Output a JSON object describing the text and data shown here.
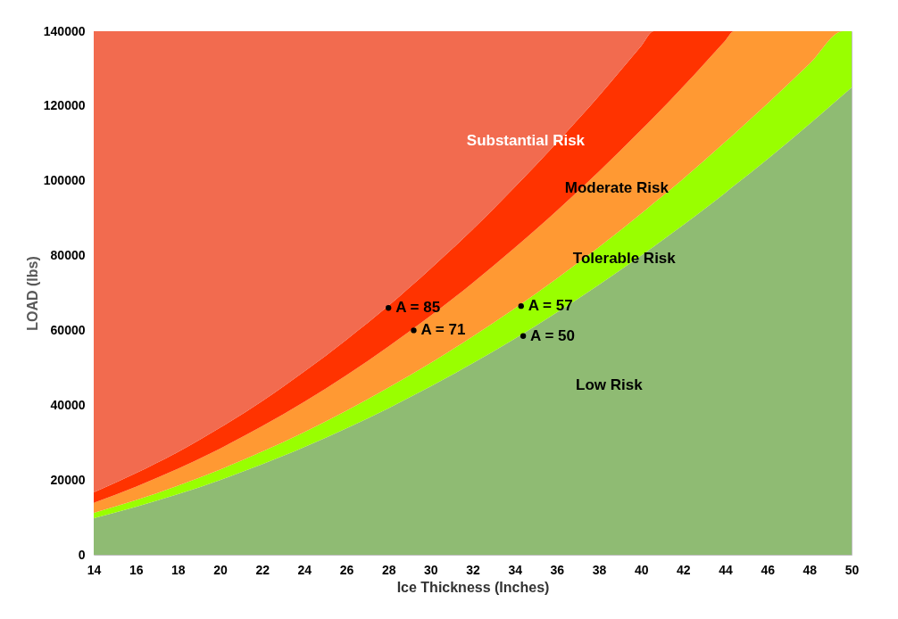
{
  "chart_data": {
    "type": "area",
    "stacked": true,
    "xlabel": "Ice Thickness (Inches)",
    "ylabel": "LOAD (lbs)",
    "xlim": [
      14,
      50
    ],
    "xticks": [
      14,
      16,
      18,
      20,
      22,
      24,
      26,
      28,
      30,
      32,
      34,
      36,
      38,
      40,
      42,
      44,
      46,
      48,
      50
    ],
    "ylim": [
      0,
      140000
    ],
    "yticks": [
      0,
      20000,
      40000,
      60000,
      80000,
      100000,
      120000,
      140000
    ],
    "grid": false,
    "x": [
      14,
      16,
      18,
      20,
      22,
      24,
      26,
      28,
      30,
      32,
      34,
      36,
      38,
      40,
      40.6,
      42,
      44,
      44.4,
      46,
      48,
      49.6,
      50
    ],
    "series": [
      {
        "color": "#8fbb73",
        "values": [
          9800,
          12800,
          16200,
          20000,
          24200,
          28800,
          33800,
          39200,
          45000,
          51200,
          57800,
          64800,
          72200,
          80000,
          82400,
          88200,
          96800,
          98600,
          105800,
          115200,
          123000,
          125000
        ]
      },
      {
        "color": "#99ff00",
        "values": [
          1400,
          1800,
          2300,
          2800,
          3400,
          4000,
          4700,
          5500,
          6300,
          7200,
          8100,
          9100,
          10100,
          11200,
          11600,
          12300,
          13600,
          13800,
          14800,
          16100,
          17000,
          15000
        ]
      },
      {
        "color": "#ff9933",
        "values": [
          2700,
          3600,
          4500,
          5600,
          6800,
          8100,
          9500,
          11000,
          12600,
          14300,
          16200,
          18100,
          20200,
          22400,
          23000,
          24700,
          27100,
          27600,
          19400,
          8700,
          0,
          0
        ]
      },
      {
        "color": "#ff3300",
        "values": [
          2800,
          3600,
          4500,
          5600,
          6700,
          8100,
          9500,
          10900,
          12600,
          14300,
          16200,
          18200,
          20200,
          22400,
          23000,
          14800,
          2500,
          0,
          0,
          0,
          0,
          0
        ]
      },
      {
        "color": "#f26b4f",
        "values": [
          123300,
          118200,
          112500,
          106000,
          98900,
          91000,
          82500,
          73400,
          63500,
          53000,
          41700,
          29800,
          17300,
          4000,
          0,
          0,
          0,
          0,
          0,
          0,
          0,
          0
        ]
      },
      {
        "type": "scatter",
        "marker": "circle",
        "color": "#000000",
        "x": [
          28,
          29.2,
          34.3,
          34.4
        ],
        "values": [
          66000,
          60000,
          66500,
          58500
        ]
      }
    ],
    "annotations": [
      "Substantial Risk",
      "Moderate Risk",
      "Tolerable Risk",
      "Low Risk",
      {
        "text": "A = 85",
        "x": 28,
        "y": 66000
      },
      {
        "text": "A = 71",
        "x": 29.2,
        "y": 60000
      },
      {
        "text": "A = 57",
        "x": 34.3,
        "y": 66500
      },
      {
        "text": "A = 50",
        "x": 34.4,
        "y": 58500
      }
    ]
  }
}
